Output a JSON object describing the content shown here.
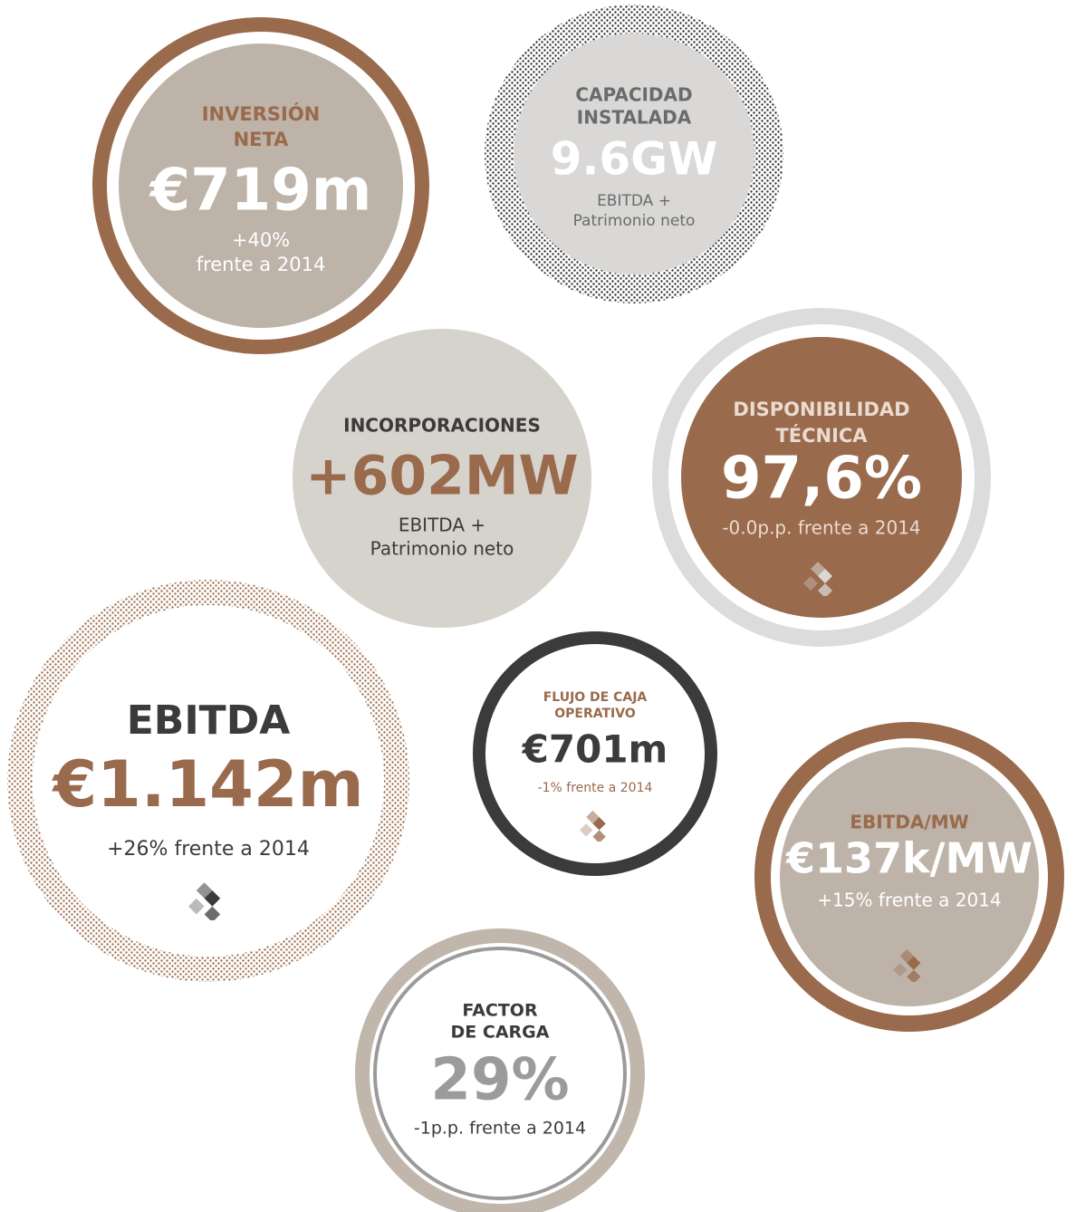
{
  "circles": [
    {
      "title": [
        "INVERSIÓN",
        "NETA"
      ],
      "value": "€719m",
      "subtitle": [
        "+40%",
        "frente a 2014"
      ]
    },
    {
      "title": [
        "CAPACIDAD",
        "INSTALADA"
      ],
      "value": "9.6GW",
      "subtitle": [
        "EBITDA +",
        "Patrimonio neto"
      ]
    },
    {
      "title": [
        "INCORPORACIONES"
      ],
      "value": "+602MW",
      "subtitle": [
        "EBITDA +",
        "Patrimonio neto"
      ]
    },
    {
      "title": [
        "DISPONIBILIDAD",
        "TÉCNICA"
      ],
      "value": "97,6%",
      "subtitle": [
        "-0.0p.p. frente a 2014"
      ]
    },
    {
      "title": [
        "EBITDA"
      ],
      "value": "€1.142m",
      "subtitle": [
        "+26% frente a 2014"
      ]
    },
    {
      "title": [
        "FLUJO DE CAJA",
        "OPERATIVO"
      ],
      "value": "€701m",
      "subtitle": [
        "-1% frente a 2014"
      ]
    },
    {
      "title": [
        "EBITDA/MW"
      ],
      "value": "€137k/MW",
      "subtitle": [
        "+15% frente a 2014"
      ]
    },
    {
      "title": [
        "FACTOR",
        "DE CARGA"
      ],
      "value": "29%",
      "subtitle": [
        "-1p.p. frente a 2014"
      ]
    }
  ]
}
